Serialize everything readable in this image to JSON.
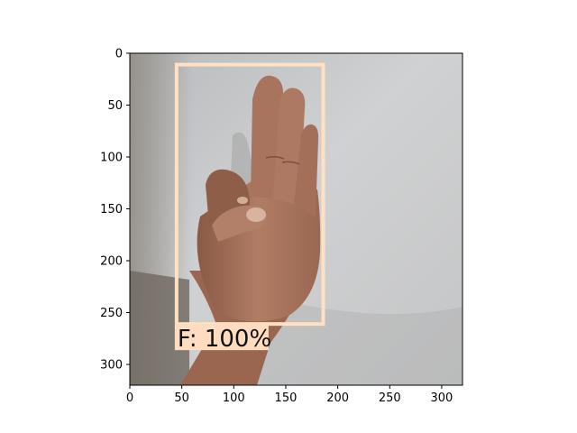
{
  "image": {
    "width": 320,
    "height": 320,
    "xlim": [
      0,
      320
    ],
    "ylim": [
      320,
      0
    ]
  },
  "axes": {
    "x_ticks": [
      0,
      50,
      100,
      150,
      200,
      250,
      300
    ],
    "y_ticks": [
      0,
      50,
      100,
      150,
      200,
      250,
      300
    ],
    "x_tick_labels": [
      "0",
      "50",
      "100",
      "150",
      "200",
      "250",
      "300"
    ],
    "y_tick_labels": [
      "0",
      "50",
      "100",
      "150",
      "200",
      "250",
      "300"
    ]
  },
  "detection": {
    "label": "F: 100%",
    "class": "F",
    "score": 100,
    "box": {
      "x_min": 45,
      "y_min": 11,
      "x_max": 186,
      "y_max": 261
    },
    "color": "#ffe0c2",
    "label_bg_color": "#ffdcc0"
  },
  "colors": {
    "wall": "#c9cacb",
    "skin": "#a8745e",
    "skin_shadow": "#7a5040",
    "axis": "#000000"
  }
}
